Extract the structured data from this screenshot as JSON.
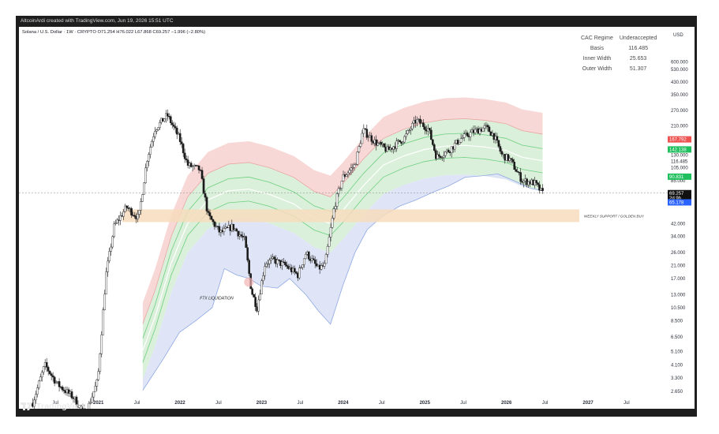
{
  "header": {
    "credit": "AltcoinArdi created with TradingView.com, Jun 19, 2026 15:51 UTC",
    "legend": "Solana / U.S. Dollar · 1W · CRYPTO  O71.254  H76.022  L67.868  C69.257  −1.996 (−2.80%)"
  },
  "indicator_table": {
    "rows": [
      {
        "key": "CAC Regime",
        "value": "Underaccepted"
      },
      {
        "key": "Basis",
        "value": "116.485"
      },
      {
        "key": "Inner Width",
        "value": "25.653"
      },
      {
        "key": "Outer Width",
        "value": "51.307"
      }
    ]
  },
  "footer": {
    "brand": "TradingView"
  },
  "colors": {
    "upper_band": "#f6d1cf",
    "mid_band": "#d7eed7",
    "lower_band": "#dde4f6",
    "lower_band_edge": "#8fa8e3",
    "support_zone": "#f7dcbc",
    "candles": "#1a1a1a"
  },
  "chart_data": {
    "type": "line",
    "title": "Solana / U.S. Dollar · 1W · CRYPTO",
    "y_scale": "log",
    "currency": "USD",
    "y_ticks": [
      "600.000",
      "530.000",
      "430.000",
      "350.000",
      "270.000",
      "210.000",
      "130.000",
      "116.485",
      "105.000",
      "85.000",
      "42.000",
      "34.000",
      "26.000",
      "21.000",
      "17.000",
      "13.000",
      "10.500",
      "8.500",
      "6.500",
      "5.100",
      "4.100",
      "3.300",
      "2.650"
    ],
    "price_tags": [
      {
        "label": "167.792",
        "value": 167.792,
        "color": "#ef5350"
      },
      {
        "label": "142.138",
        "value": 142.138,
        "color": "#1fbf5e"
      },
      {
        "label": "90.831",
        "value": 90.831,
        "color": "#1fbf5e"
      },
      {
        "label": "69.257",
        "value": 69.257,
        "color": "#111111"
      },
      {
        "label": "2d 9h",
        "value": 64,
        "color": "#111111"
      },
      {
        "label": "65.178",
        "value": 59.5,
        "color": "#2962ff"
      }
    ],
    "x_ticks": [
      {
        "label": "Jul",
        "date": 2020.5,
        "bold": false
      },
      {
        "label": "2021",
        "date": 2021.0,
        "bold": true
      },
      {
        "label": "Jul",
        "date": 2021.5,
        "bold": false
      },
      {
        "label": "2022",
        "date": 2022.0,
        "bold": true
      },
      {
        "label": "Jul",
        "date": 2022.5,
        "bold": false
      },
      {
        "label": "2023",
        "date": 2023.0,
        "bold": true
      },
      {
        "label": "Jul",
        "date": 2023.5,
        "bold": false
      },
      {
        "label": "2024",
        "date": 2024.0,
        "bold": true
      },
      {
        "label": "Jul",
        "date": 2024.5,
        "bold": false
      },
      {
        "label": "2025",
        "date": 2025.0,
        "bold": true
      },
      {
        "label": "Jul",
        "date": 2025.5,
        "bold": false
      },
      {
        "label": "2026",
        "date": 2026.0,
        "bold": true
      },
      {
        "label": "Jul",
        "date": 2026.5,
        "bold": false
      },
      {
        "label": "2027",
        "date": 2027.0,
        "bold": true
      },
      {
        "label": "Jul",
        "date": 2027.5,
        "bold": false
      }
    ],
    "support_zone": {
      "label": "WEEKLY SUPPORT / GOLDEN BUY",
      "low": 43,
      "high": 53
    },
    "annotation": {
      "label": "FTX LIQUIDATION",
      "date": 2022.85,
      "value": 16
    },
    "basis": [
      [
        2021.55,
        5.2
      ],
      [
        2021.7,
        9
      ],
      [
        2021.9,
        22
      ],
      [
        2022.1,
        42
      ],
      [
        2022.35,
        62
      ],
      [
        2022.6,
        72
      ],
      [
        2022.85,
        74
      ],
      [
        2023.1,
        68
      ],
      [
        2023.4,
        58
      ],
      [
        2023.65,
        46
      ],
      [
        2023.85,
        42
      ],
      [
        2024.0,
        52
      ],
      [
        2024.25,
        78
      ],
      [
        2024.5,
        110
      ],
      [
        2024.75,
        128
      ],
      [
        2025.0,
        142
      ],
      [
        2025.25,
        150
      ],
      [
        2025.5,
        152
      ],
      [
        2025.75,
        148
      ],
      [
        2026.0,
        140
      ],
      [
        2026.2,
        125
      ],
      [
        2026.45,
        118
      ]
    ],
    "price": [
      [
        2020.2,
        2.2
      ],
      [
        2020.35,
        4.1
      ],
      [
        2020.5,
        3
      ],
      [
        2020.7,
        2.4
      ],
      [
        2020.85,
        1.8
      ],
      [
        2021.0,
        3.2
      ],
      [
        2021.1,
        18
      ],
      [
        2021.2,
        40
      ],
      [
        2021.35,
        55
      ],
      [
        2021.5,
        46
      ],
      [
        2021.6,
        120
      ],
      [
        2021.7,
        200
      ],
      [
        2021.85,
        250
      ],
      [
        2022.0,
        170
      ],
      [
        2022.1,
        110
      ],
      [
        2022.25,
        102
      ],
      [
        2022.35,
        48
      ],
      [
        2022.5,
        36
      ],
      [
        2022.65,
        40
      ],
      [
        2022.8,
        32
      ],
      [
        2022.88,
        14
      ],
      [
        2022.95,
        10.5
      ],
      [
        2023.05,
        22
      ],
      [
        2023.15,
        23
      ],
      [
        2023.3,
        21
      ],
      [
        2023.45,
        18
      ],
      [
        2023.55,
        26
      ],
      [
        2023.7,
        20
      ],
      [
        2023.78,
        21
      ],
      [
        2023.9,
        56
      ],
      [
        2024.0,
        90
      ],
      [
        2024.15,
        110
      ],
      [
        2024.25,
        195
      ],
      [
        2024.4,
        160
      ],
      [
        2024.55,
        140
      ],
      [
        2024.75,
        170
      ],
      [
        2024.9,
        230
      ],
      [
        2025.05,
        200
      ],
      [
        2025.15,
        125
      ],
      [
        2025.3,
        140
      ],
      [
        2025.45,
        170
      ],
      [
        2025.6,
        190
      ],
      [
        2025.75,
        205
      ],
      [
        2025.85,
        180
      ],
      [
        2025.95,
        130
      ],
      [
        2026.05,
        120
      ],
      [
        2026.2,
        85
      ],
      [
        2026.35,
        82
      ],
      [
        2026.45,
        69
      ]
    ],
    "lower_edge": [
      [
        2021.55,
        2.7
      ],
      [
        2021.8,
        4.5
      ],
      [
        2022.0,
        7
      ],
      [
        2022.2,
        8.5
      ],
      [
        2022.4,
        10.5
      ],
      [
        2022.55,
        20
      ],
      [
        2022.7,
        18
      ],
      [
        2022.85,
        17
      ],
      [
        2023.0,
        15
      ],
      [
        2023.2,
        14.5
      ],
      [
        2023.35,
        17
      ],
      [
        2023.55,
        13
      ],
      [
        2023.7,
        10
      ],
      [
        2023.85,
        8
      ],
      [
        2024.0,
        15
      ],
      [
        2024.15,
        26
      ],
      [
        2024.3,
        38
      ],
      [
        2024.5,
        48
      ],
      [
        2024.7,
        56
      ],
      [
        2024.9,
        62
      ],
      [
        2025.1,
        70
      ],
      [
        2025.3,
        78
      ],
      [
        2025.5,
        90
      ],
      [
        2025.7,
        92
      ],
      [
        2025.9,
        95
      ],
      [
        2026.1,
        85
      ],
      [
        2026.3,
        75
      ],
      [
        2026.45,
        72
      ]
    ]
  }
}
